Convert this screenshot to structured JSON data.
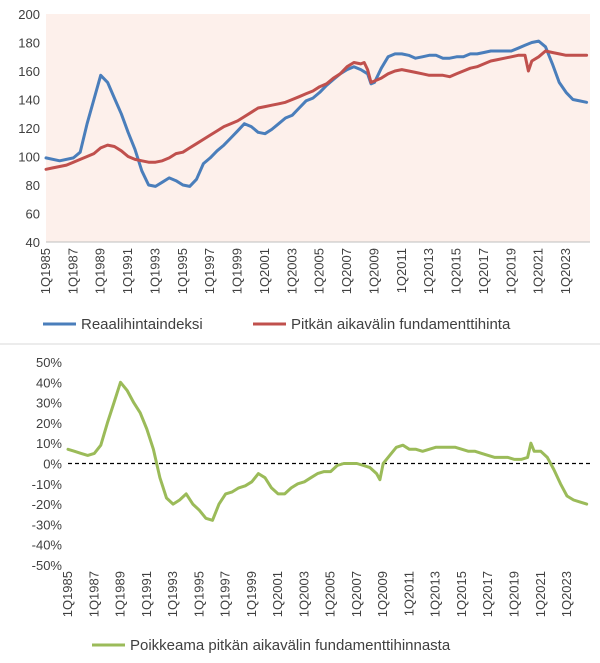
{
  "chart_data": [
    {
      "type": "line",
      "title": "",
      "ylim": [
        40,
        200
      ],
      "yticks": [
        "40",
        "60",
        "80",
        "100",
        "120",
        "140",
        "160",
        "180",
        "200"
      ],
      "xticks": [
        "1Q1985",
        "1Q1987",
        "1Q1989",
        "1Q1991",
        "1Q1993",
        "1Q1995",
        "1Q1997",
        "1Q1999",
        "1Q2001",
        "1Q2003",
        "1Q2005",
        "1Q2007",
        "1Q2009",
        "1Q2011",
        "1Q2013",
        "1Q2015",
        "1Q2017",
        "1Q2019",
        "1Q2021",
        "1Q2023"
      ],
      "x_range": [
        1985.0,
        2024.75
      ],
      "plot_background": "#fdf0eb",
      "grid": false,
      "legend_position": "bottom",
      "series": [
        {
          "name": "Reaalihintaindeksi",
          "color": "#4a7ebb",
          "points": [
            [
              1985.0,
              99
            ],
            [
              1986.0,
              97
            ],
            [
              1987.0,
              99
            ],
            [
              1987.5,
              103
            ],
            [
              1988.0,
              123
            ],
            [
              1988.5,
              140
            ],
            [
              1989.0,
              157
            ],
            [
              1989.5,
              152
            ],
            [
              1990.0,
              141
            ],
            [
              1990.5,
              130
            ],
            [
              1991.0,
              117
            ],
            [
              1991.5,
              105
            ],
            [
              1992.0,
              90
            ],
            [
              1992.5,
              80
            ],
            [
              1993.0,
              79
            ],
            [
              1993.5,
              82
            ],
            [
              1994.0,
              85
            ],
            [
              1994.5,
              83
            ],
            [
              1995.0,
              80
            ],
            [
              1995.5,
              79
            ],
            [
              1996.0,
              84
            ],
            [
              1996.5,
              95
            ],
            [
              1997.0,
              99
            ],
            [
              1997.5,
              104
            ],
            [
              1998.0,
              108
            ],
            [
              1998.5,
              113
            ],
            [
              1999.0,
              118
            ],
            [
              1999.5,
              123
            ],
            [
              2000.0,
              121
            ],
            [
              2000.5,
              117
            ],
            [
              2001.0,
              116
            ],
            [
              2001.5,
              119
            ],
            [
              2002.0,
              123
            ],
            [
              2002.5,
              127
            ],
            [
              2003.0,
              129
            ],
            [
              2003.5,
              134
            ],
            [
              2004.0,
              139
            ],
            [
              2004.5,
              141
            ],
            [
              2005.0,
              145
            ],
            [
              2005.5,
              150
            ],
            [
              2006.0,
              154
            ],
            [
              2006.5,
              158
            ],
            [
              2007.0,
              161
            ],
            [
              2007.5,
              163
            ],
            [
              2008.0,
              161
            ],
            [
              2008.5,
              158
            ],
            [
              2008.75,
              151
            ],
            [
              2009.0,
              152
            ],
            [
              2009.5,
              162
            ],
            [
              2010.0,
              170
            ],
            [
              2010.5,
              172
            ],
            [
              2011.0,
              172
            ],
            [
              2011.5,
              171
            ],
            [
              2012.0,
              169
            ],
            [
              2012.5,
              170
            ],
            [
              2013.0,
              171
            ],
            [
              2013.5,
              171
            ],
            [
              2014.0,
              169
            ],
            [
              2014.5,
              169
            ],
            [
              2015.0,
              170
            ],
            [
              2015.5,
              170
            ],
            [
              2016.0,
              172
            ],
            [
              2016.5,
              172
            ],
            [
              2017.0,
              173
            ],
            [
              2017.5,
              174
            ],
            [
              2018.0,
              174
            ],
            [
              2018.5,
              174
            ],
            [
              2019.0,
              174
            ],
            [
              2019.5,
              176
            ],
            [
              2020.0,
              178
            ],
            [
              2020.5,
              180
            ],
            [
              2021.0,
              181
            ],
            [
              2021.5,
              177
            ],
            [
              2022.0,
              165
            ],
            [
              2022.5,
              152
            ],
            [
              2023.0,
              145
            ],
            [
              2023.5,
              140
            ],
            [
              2024.0,
              139
            ],
            [
              2024.5,
              138
            ]
          ]
        },
        {
          "name": "Pitkän aikavälin fundamenttihinta",
          "color": "#c0504d",
          "points": [
            [
              1985.0,
              91
            ],
            [
              1985.5,
              92
            ],
            [
              1986.0,
              93
            ],
            [
              1986.5,
              94
            ],
            [
              1987.0,
              96
            ],
            [
              1987.5,
              98
            ],
            [
              1988.0,
              100
            ],
            [
              1988.5,
              102
            ],
            [
              1989.0,
              106
            ],
            [
              1989.5,
              108
            ],
            [
              1990.0,
              107
            ],
            [
              1990.5,
              104
            ],
            [
              1991.0,
              100
            ],
            [
              1991.5,
              98
            ],
            [
              1992.0,
              97
            ],
            [
              1992.5,
              96
            ],
            [
              1993.0,
              96
            ],
            [
              1993.5,
              97
            ],
            [
              1994.0,
              99
            ],
            [
              1994.5,
              102
            ],
            [
              1995.0,
              103
            ],
            [
              1995.5,
              106
            ],
            [
              1996.0,
              109
            ],
            [
              1996.5,
              112
            ],
            [
              1997.0,
              115
            ],
            [
              1997.5,
              118
            ],
            [
              1998.0,
              121
            ],
            [
              1998.5,
              123
            ],
            [
              1999.0,
              125
            ],
            [
              1999.5,
              128
            ],
            [
              2000.0,
              131
            ],
            [
              2000.5,
              134
            ],
            [
              2001.0,
              135
            ],
            [
              2001.5,
              136
            ],
            [
              2002.0,
              137
            ],
            [
              2002.5,
              138
            ],
            [
              2003.0,
              140
            ],
            [
              2003.5,
              142
            ],
            [
              2004.0,
              144
            ],
            [
              2004.5,
              146
            ],
            [
              2005.0,
              149
            ],
            [
              2005.5,
              151
            ],
            [
              2006.0,
              155
            ],
            [
              2006.5,
              158
            ],
            [
              2007.0,
              163
            ],
            [
              2007.5,
              166
            ],
            [
              2008.0,
              165
            ],
            [
              2008.25,
              166
            ],
            [
              2008.5,
              161
            ],
            [
              2008.75,
              152
            ],
            [
              2009.0,
              153
            ],
            [
              2009.5,
              155
            ],
            [
              2010.0,
              158
            ],
            [
              2010.5,
              160
            ],
            [
              2011.0,
              161
            ],
            [
              2011.5,
              160
            ],
            [
              2012.0,
              159
            ],
            [
              2012.5,
              158
            ],
            [
              2013.0,
              157
            ],
            [
              2013.5,
              157
            ],
            [
              2014.0,
              157
            ],
            [
              2014.5,
              156
            ],
            [
              2015.0,
              158
            ],
            [
              2015.5,
              160
            ],
            [
              2016.0,
              162
            ],
            [
              2016.5,
              163
            ],
            [
              2017.0,
              165
            ],
            [
              2017.5,
              167
            ],
            [
              2018.0,
              168
            ],
            [
              2018.5,
              169
            ],
            [
              2019.0,
              170
            ],
            [
              2019.5,
              171
            ],
            [
              2020.0,
              171
            ],
            [
              2020.25,
              160
            ],
            [
              2020.5,
              167
            ],
            [
              2021.0,
              170
            ],
            [
              2021.5,
              174
            ],
            [
              2022.0,
              173
            ],
            [
              2022.5,
              172
            ],
            [
              2023.0,
              171
            ],
            [
              2023.5,
              171
            ],
            [
              2024.0,
              171
            ],
            [
              2024.5,
              171
            ]
          ]
        }
      ]
    },
    {
      "type": "line",
      "title": "",
      "ylim": [
        -50,
        50
      ],
      "yticks": [
        "-50%",
        "-40%",
        "-30%",
        "-20%",
        "-10%",
        "0%",
        "10%",
        "20%",
        "30%",
        "40%",
        "50%"
      ],
      "xticks": [
        "1Q1985",
        "1Q1987",
        "1Q1989",
        "1Q1991",
        "1Q1993",
        "1Q1995",
        "1Q1997",
        "1Q1999",
        "1Q2001",
        "1Q2003",
        "1Q2005",
        "1Q2007",
        "1Q2009",
        "1Q2011",
        "1Q2013",
        "1Q2015",
        "1Q2017",
        "1Q2019",
        "1Q2021",
        "1Q2023"
      ],
      "x_range": [
        1985.0,
        2024.75
      ],
      "zero_line": "dashed",
      "grid": false,
      "legend_position": "bottom",
      "series": [
        {
          "name": "Poikkeama pitkän aikavälin fundamenttihinnasta",
          "color": "#9bbb59",
          "points": [
            [
              1985.0,
              7
            ],
            [
              1985.5,
              6
            ],
            [
              1986.0,
              5
            ],
            [
              1986.5,
              4
            ],
            [
              1987.0,
              5
            ],
            [
              1987.5,
              9
            ],
            [
              1988.0,
              20
            ],
            [
              1988.5,
              30
            ],
            [
              1989.0,
              40
            ],
            [
              1989.5,
              36
            ],
            [
              1990.0,
              30
            ],
            [
              1990.5,
              25
            ],
            [
              1991.0,
              17
            ],
            [
              1991.5,
              7
            ],
            [
              1992.0,
              -7
            ],
            [
              1992.5,
              -17
            ],
            [
              1993.0,
              -20
            ],
            [
              1993.5,
              -18
            ],
            [
              1994.0,
              -15
            ],
            [
              1994.5,
              -20
            ],
            [
              1995.0,
              -23
            ],
            [
              1995.5,
              -27
            ],
            [
              1996.0,
              -28
            ],
            [
              1996.5,
              -20
            ],
            [
              1997.0,
              -15
            ],
            [
              1997.5,
              -14
            ],
            [
              1998.0,
              -12
            ],
            [
              1998.5,
              -11
            ],
            [
              1999.0,
              -9
            ],
            [
              1999.5,
              -5
            ],
            [
              2000.0,
              -7
            ],
            [
              2000.5,
              -12
            ],
            [
              2001.0,
              -15
            ],
            [
              2001.5,
              -15
            ],
            [
              2002.0,
              -12
            ],
            [
              2002.5,
              -10
            ],
            [
              2003.0,
              -9
            ],
            [
              2003.5,
              -7
            ],
            [
              2004.0,
              -5
            ],
            [
              2004.5,
              -4
            ],
            [
              2005.0,
              -4
            ],
            [
              2005.5,
              -1
            ],
            [
              2006.0,
              0
            ],
            [
              2006.5,
              0
            ],
            [
              2007.0,
              0
            ],
            [
              2007.5,
              -1
            ],
            [
              2008.0,
              -2
            ],
            [
              2008.5,
              -5
            ],
            [
              2008.75,
              -8
            ],
            [
              2009.0,
              0
            ],
            [
              2009.5,
              4
            ],
            [
              2010.0,
              8
            ],
            [
              2010.5,
              9
            ],
            [
              2011.0,
              7
            ],
            [
              2011.5,
              7
            ],
            [
              2012.0,
              6
            ],
            [
              2012.5,
              7
            ],
            [
              2013.0,
              8
            ],
            [
              2013.5,
              8
            ],
            [
              2014.0,
              8
            ],
            [
              2014.5,
              8
            ],
            [
              2015.0,
              7
            ],
            [
              2015.5,
              6
            ],
            [
              2016.0,
              6
            ],
            [
              2016.5,
              5
            ],
            [
              2017.0,
              4
            ],
            [
              2017.5,
              3
            ],
            [
              2018.0,
              3
            ],
            [
              2018.5,
              3
            ],
            [
              2019.0,
              2
            ],
            [
              2019.5,
              2
            ],
            [
              2020.0,
              3
            ],
            [
              2020.25,
              10
            ],
            [
              2020.5,
              6
            ],
            [
              2021.0,
              6
            ],
            [
              2021.5,
              3
            ],
            [
              2022.0,
              -3
            ],
            [
              2022.5,
              -10
            ],
            [
              2023.0,
              -16
            ],
            [
              2023.5,
              -18
            ],
            [
              2024.0,
              -19
            ],
            [
              2024.5,
              -20
            ]
          ]
        }
      ]
    }
  ]
}
